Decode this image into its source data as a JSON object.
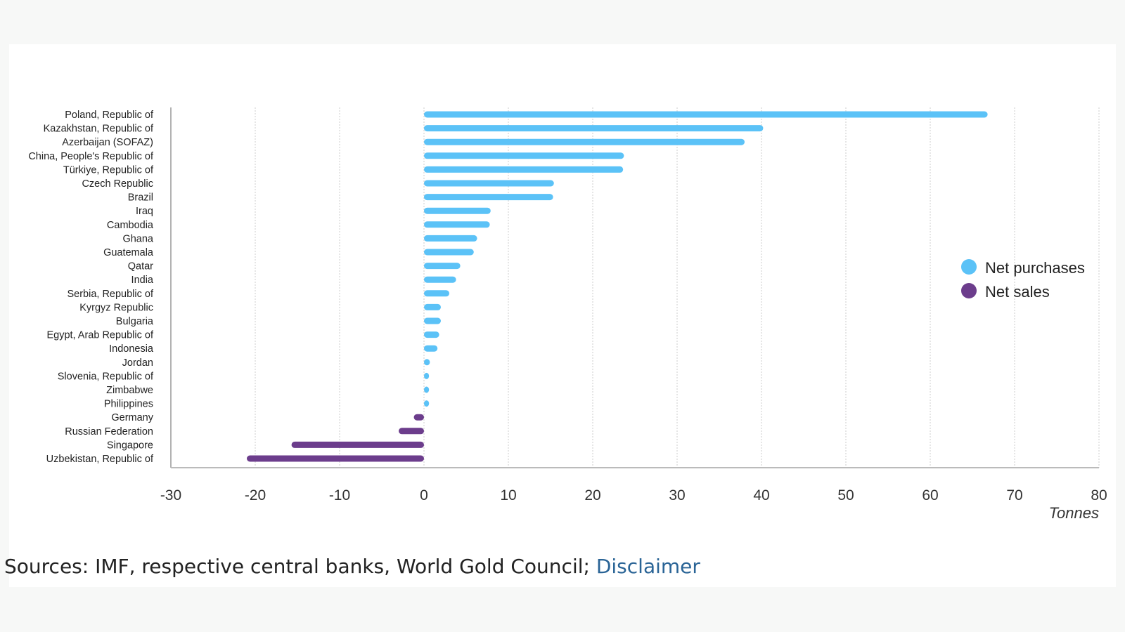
{
  "chart_data": {
    "type": "bar",
    "orientation": "horizontal",
    "categories": [
      "Poland, Republic of",
      "Kazakhstan, Republic of",
      "Azerbaijan (SOFAZ)",
      "China, People's Republic of",
      "Türkiye, Republic of",
      "Czech Republic",
      "Brazil",
      "Iraq",
      "Cambodia",
      "Ghana",
      "Guatemala",
      "Qatar",
      "India",
      "Serbia, Republic of",
      "Kyrgyz Republic",
      "Bulgaria",
      "Egypt, Arab Republic of",
      "Indonesia",
      "Jordan",
      "Slovenia, Republic of",
      "Zimbabwe",
      "Philippines",
      "Germany",
      "Russian Federation",
      "Singapore",
      "Uzbekistan, Republic of"
    ],
    "values": [
      66.8,
      40.2,
      38.0,
      23.7,
      23.6,
      15.4,
      15.3,
      7.9,
      7.8,
      6.3,
      5.9,
      4.3,
      3.8,
      3.0,
      2.0,
      2.0,
      1.8,
      1.6,
      0.7,
      0.6,
      0.6,
      0.6,
      -1.2,
      -3.0,
      -15.7,
      -21.0
    ],
    "series": [
      {
        "name": "Net purchases",
        "color": "#5bc2f7"
      },
      {
        "name": "Net sales",
        "color": "#6c3d8c"
      }
    ],
    "xlabel": "Tonnes",
    "xlim": [
      -30,
      80
    ],
    "xticks": [
      "-30",
      "-20",
      "-10",
      "0",
      "10",
      "20",
      "30",
      "40",
      "50",
      "60",
      "70",
      "80"
    ],
    "grid": true,
    "legend": "right"
  },
  "footer": {
    "sources": "Sources: IMF, respective central banks, World Gold Council; ",
    "disclaimer_link": "Disclaimer"
  }
}
